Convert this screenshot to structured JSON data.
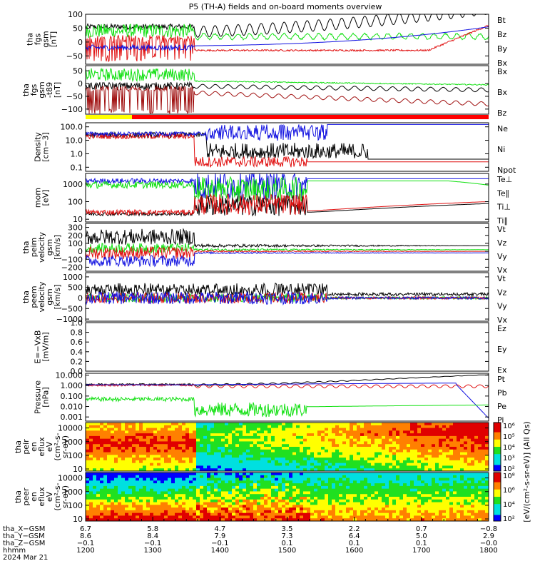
{
  "title": "P5 (TH-A) fields and on-board moments overview",
  "colors": {
    "black": "#000000",
    "red": "#e01010",
    "green": "#10e010",
    "blue": "#1010e0",
    "darkred": "#a01010",
    "yellow": "#ffff00",
    "brightred": "#ff0000"
  },
  "chart_data": [
    {
      "type": "line",
      "panel": "fgs_gsm",
      "ylabel": [
        "tha",
        "fgs",
        "gsm",
        "[nT]"
      ],
      "ylim": [
        -80,
        100
      ],
      "yticks": [
        "100",
        "50",
        "0",
        "−50"
      ],
      "yticks_values": [
        100,
        50,
        0,
        -50
      ],
      "legend": [
        {
          "name": "Bt",
          "color": "#000000"
        },
        {
          "name": "Bz",
          "color": "#e01010"
        },
        {
          "name": "By",
          "color": "#10e010"
        },
        {
          "name": "Bx",
          "color": "#1010e0"
        }
      ]
    },
    {
      "type": "line",
      "panel": "fgs_gsm_t89",
      "ylabel": [
        "tha",
        "fgs",
        "gsm",
        "-t89",
        "[nT]"
      ],
      "ylim": [
        -120,
        70
      ],
      "yticks": [
        "50",
        "0",
        "−50",
        "−100"
      ],
      "yticks_values": [
        50,
        0,
        -50,
        -100
      ],
      "legend": [
        {
          "name": "Bx",
          "color": "#10e010"
        },
        {
          "name": "Bx",
          "color": "#000000"
        },
        {
          "name": "Bz",
          "color": "#a01010"
        }
      ]
    },
    {
      "type": "bar",
      "panel": "status_bar"
    },
    {
      "type": "line",
      "panel": "density",
      "ylabel": [
        "Density",
        "[cm−3]"
      ],
      "scale": "log",
      "ylim": [
        0.05,
        200
      ],
      "yticks": [
        "100.0",
        "10.0",
        "1.0",
        "0.1"
      ],
      "yticks_values": [
        100,
        10,
        1,
        0.1
      ],
      "legend": [
        {
          "name": "Ne",
          "color": "#e01010"
        },
        {
          "name": "Ni",
          "color": "#000000"
        },
        {
          "name": "Npot",
          "color": "#1010e0"
        }
      ]
    },
    {
      "type": "line",
      "panel": "temperature",
      "ylabel": [
        "mom",
        "[eV]"
      ],
      "scale": "log",
      "ylim": [
        7,
        4000
      ],
      "yticks": [
        "1000",
        "100",
        "10"
      ],
      "yticks_values": [
        1000,
        100,
        10
      ],
      "legend": [
        {
          "name": "Te⊥",
          "color": "#e01010"
        },
        {
          "name": "Te∥",
          "color": "#000000"
        },
        {
          "name": "Ti⊥",
          "color": "#10e010"
        },
        {
          "name": "Ti∥",
          "color": "#10e010"
        }
      ]
    },
    {
      "type": "line",
      "panel": "peim_velocity",
      "ylabel": [
        "tha",
        "peim",
        "velocity",
        "gsm",
        "[km/s]"
      ],
      "ylim": [
        -250,
        350
      ],
      "yticks": [
        "300",
        "200",
        "100",
        "0",
        "−100",
        "−200"
      ],
      "yticks_values": [
        300,
        200,
        100,
        0,
        -100,
        -200
      ],
      "legend": [
        {
          "name": "Vt",
          "color": "#000000"
        },
        {
          "name": "Vz",
          "color": "#e01010"
        },
        {
          "name": "Vy",
          "color": "#10e010"
        },
        {
          "name": "Vx",
          "color": "#1010e0"
        }
      ]
    },
    {
      "type": "line",
      "panel": "peem_velocity",
      "ylabel": [
        "tha",
        "peem",
        "velocity",
        "gsm",
        "[km/s]"
      ],
      "ylim": [
        -1100,
        1200
      ],
      "yticks": [
        "1000",
        "500",
        "0",
        "−500",
        "−1000"
      ],
      "yticks_values": [
        1000,
        500,
        0,
        -500,
        -1000
      ],
      "legend": [
        {
          "name": "Vt",
          "color": "#000000"
        },
        {
          "name": "Vz",
          "color": "#e01010"
        },
        {
          "name": "Vy",
          "color": "#10e010"
        },
        {
          "name": "Vx",
          "color": "#1010e0"
        }
      ]
    },
    {
      "type": "line",
      "panel": "efield",
      "ylabel": [
        "E=−VxB",
        "[mV/m]"
      ],
      "ylim": [
        0,
        1
      ],
      "yticks": [
        "1.0",
        "0.8",
        "0.6",
        "0.4",
        "0.2",
        "0.0"
      ],
      "yticks_values": [
        1,
        0.8,
        0.6,
        0.4,
        0.2,
        0
      ],
      "legend": [
        {
          "name": "Ez",
          "color": "#e01010"
        },
        {
          "name": "Ey",
          "color": "#10e010"
        },
        {
          "name": "Ex",
          "color": "#1010e0"
        }
      ]
    },
    {
      "type": "line",
      "panel": "pressure",
      "ylabel": [
        "Pressure",
        "[nPa]"
      ],
      "scale": "log",
      "ylim": [
        0.0004,
        15
      ],
      "yticks": [
        "10.000",
        "1.000",
        "0.100",
        "0.010",
        "0.001"
      ],
      "yticks_values": [
        10,
        1,
        0.1,
        0.01,
        0.001
      ],
      "legend": [
        {
          "name": "Pt",
          "color": "#000000"
        },
        {
          "name": "Pb",
          "color": "#e01010"
        },
        {
          "name": "Pe",
          "color": "#10e010"
        },
        {
          "name": "Pi",
          "color": "#1010e0"
        }
      ]
    },
    {
      "type": "heatmap",
      "panel": "peir_spectrogram",
      "ylabel": [
        "tha",
        "peir",
        "en",
        "eflux",
        "eV",
        "(cm²-s-",
        "sr-eV)"
      ],
      "scale": "log",
      "ylim": [
        7,
        25000
      ],
      "yticks": [
        "10000",
        "1000",
        "100",
        "10"
      ],
      "yticks_values": [
        10000,
        1000,
        100,
        10
      ]
    },
    {
      "type": "heatmap",
      "panel": "peer_spectrogram",
      "ylabel": [
        "tha",
        "peer",
        "en",
        "eflux",
        "eV",
        "(cm²-s-",
        "sr-eV)"
      ],
      "scale": "log",
      "ylim": [
        7,
        25000
      ],
      "yticks": [
        "10000",
        "1000",
        "100",
        "10"
      ],
      "yticks_values": [
        10000,
        1000,
        100,
        10
      ]
    }
  ],
  "colorbar": {
    "label": "[eV/(cm²-s-sr-eV)] (All Qs)",
    "ticks_top": [
      "10⁶",
      "10⁵",
      "10⁴",
      "10³",
      "10²"
    ],
    "ticks_bottom": [
      "10⁸",
      "10⁶",
      "10⁴",
      "10²"
    ]
  },
  "xaxis": {
    "rows": [
      {
        "label": "tha_X−GSM",
        "values": [
          "6.7",
          "5.8",
          "4.7",
          "3.5",
          "2.2",
          "0.7",
          "−0.8"
        ]
      },
      {
        "label": "tha_Y−GSM",
        "values": [
          "8.6",
          "8.4",
          "7.9",
          "7.3",
          "6.4",
          "5.0",
          "2.9"
        ]
      },
      {
        "label": "tha_Z−GSM",
        "values": [
          "−0.1",
          "−0.1",
          "−0.1",
          "0.1",
          "0.1",
          "0.1",
          "−0.0"
        ]
      },
      {
        "label": "hhmm",
        "values": [
          "1200",
          "1300",
          "1400",
          "1500",
          "1600",
          "1700",
          "1800"
        ]
      }
    ],
    "date": "2024 Mar 21"
  }
}
